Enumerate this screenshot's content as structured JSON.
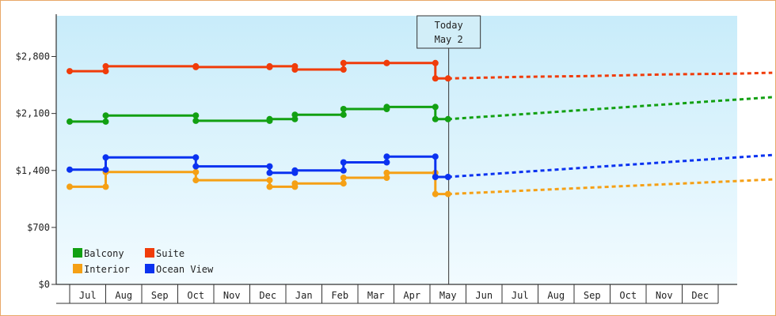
{
  "chart_data": {
    "type": "line",
    "y_axis": {
      "ticks": [
        0,
        700,
        1400,
        2100,
        2800
      ],
      "tick_labels": [
        "$0",
        "$700",
        "$1,400",
        "$2,100",
        "$2,800"
      ],
      "ylim": [
        0,
        3300
      ]
    },
    "x_axis": {
      "months": [
        "Jul",
        "Aug",
        "Sep",
        "Oct",
        "Nov",
        "Dec",
        "Jan",
        "Feb",
        "Mar",
        "Apr",
        "May",
        "Jun",
        "Jul",
        "Aug",
        "Sep",
        "Oct",
        "Nov",
        "Dec"
      ]
    },
    "today_marker": {
      "line1": "Today",
      "line2": "May 2",
      "x": 10.02
    },
    "legend": {
      "placement": "bottom-left"
    },
    "series": [
      {
        "name": "Balcony",
        "color": "#12a012",
        "points": [
          [
            -0.5,
            2000
          ],
          [
            0.5,
            2000
          ],
          [
            0.5,
            2075
          ],
          [
            3.0,
            2075
          ],
          [
            3.0,
            2010
          ],
          [
            5.05,
            2010
          ],
          [
            5.05,
            2030
          ],
          [
            5.75,
            2030
          ],
          [
            5.75,
            2085
          ],
          [
            7.1,
            2085
          ],
          [
            7.1,
            2155
          ],
          [
            8.3,
            2155
          ],
          [
            8.3,
            2180
          ],
          [
            9.65,
            2180
          ],
          [
            9.65,
            2030
          ],
          [
            10.0,
            2030
          ]
        ],
        "forecast": [
          [
            10.0,
            2030
          ],
          [
            12.0,
            2090
          ],
          [
            14.0,
            2150
          ],
          [
            16.0,
            2210
          ],
          [
            18.0,
            2270
          ],
          [
            19.0,
            2300
          ]
        ]
      },
      {
        "name": "Suite",
        "color": "#f03c0a",
        "points": [
          [
            -0.5,
            2620
          ],
          [
            0.5,
            2620
          ],
          [
            0.5,
            2680
          ],
          [
            3.0,
            2680
          ],
          [
            3.0,
            2670
          ],
          [
            5.05,
            2670
          ],
          [
            5.05,
            2680
          ],
          [
            5.75,
            2680
          ],
          [
            5.75,
            2640
          ],
          [
            7.1,
            2640
          ],
          [
            7.1,
            2720
          ],
          [
            8.3,
            2720
          ],
          [
            8.3,
            2720
          ],
          [
            9.65,
            2720
          ],
          [
            9.65,
            2530
          ],
          [
            10.0,
            2530
          ]
        ],
        "forecast": [
          [
            10.0,
            2530
          ],
          [
            12.0,
            2550
          ],
          [
            14.0,
            2560
          ],
          [
            16.0,
            2580
          ],
          [
            18.0,
            2590
          ],
          [
            19.0,
            2600
          ]
        ]
      },
      {
        "name": "Interior",
        "color": "#f5a015",
        "points": [
          [
            -0.5,
            1200
          ],
          [
            0.5,
            1200
          ],
          [
            0.5,
            1380
          ],
          [
            3.0,
            1380
          ],
          [
            3.0,
            1280
          ],
          [
            5.05,
            1280
          ],
          [
            5.05,
            1200
          ],
          [
            5.75,
            1200
          ],
          [
            5.75,
            1240
          ],
          [
            7.1,
            1240
          ],
          [
            7.1,
            1310
          ],
          [
            8.3,
            1310
          ],
          [
            8.3,
            1370
          ],
          [
            9.65,
            1370
          ],
          [
            9.65,
            1110
          ],
          [
            10.0,
            1110
          ]
        ],
        "forecast": [
          [
            10.0,
            1110
          ],
          [
            12.0,
            1150
          ],
          [
            14.0,
            1190
          ],
          [
            16.0,
            1230
          ],
          [
            18.0,
            1270
          ],
          [
            19.0,
            1290
          ]
        ]
      },
      {
        "name": "Ocean View",
        "color": "#0a32f0",
        "points": [
          [
            -0.5,
            1410
          ],
          [
            0.5,
            1410
          ],
          [
            0.5,
            1560
          ],
          [
            3.0,
            1560
          ],
          [
            3.0,
            1450
          ],
          [
            5.05,
            1450
          ],
          [
            5.05,
            1370
          ],
          [
            5.75,
            1370
          ],
          [
            5.75,
            1400
          ],
          [
            7.1,
            1400
          ],
          [
            7.1,
            1500
          ],
          [
            8.3,
            1500
          ],
          [
            8.3,
            1570
          ],
          [
            9.65,
            1570
          ],
          [
            9.65,
            1320
          ],
          [
            10.0,
            1320
          ]
        ],
        "forecast": [
          [
            10.0,
            1320
          ],
          [
            12.0,
            1380
          ],
          [
            14.0,
            1440
          ],
          [
            16.0,
            1500
          ],
          [
            18.0,
            1560
          ],
          [
            19.0,
            1590
          ]
        ]
      }
    ]
  }
}
